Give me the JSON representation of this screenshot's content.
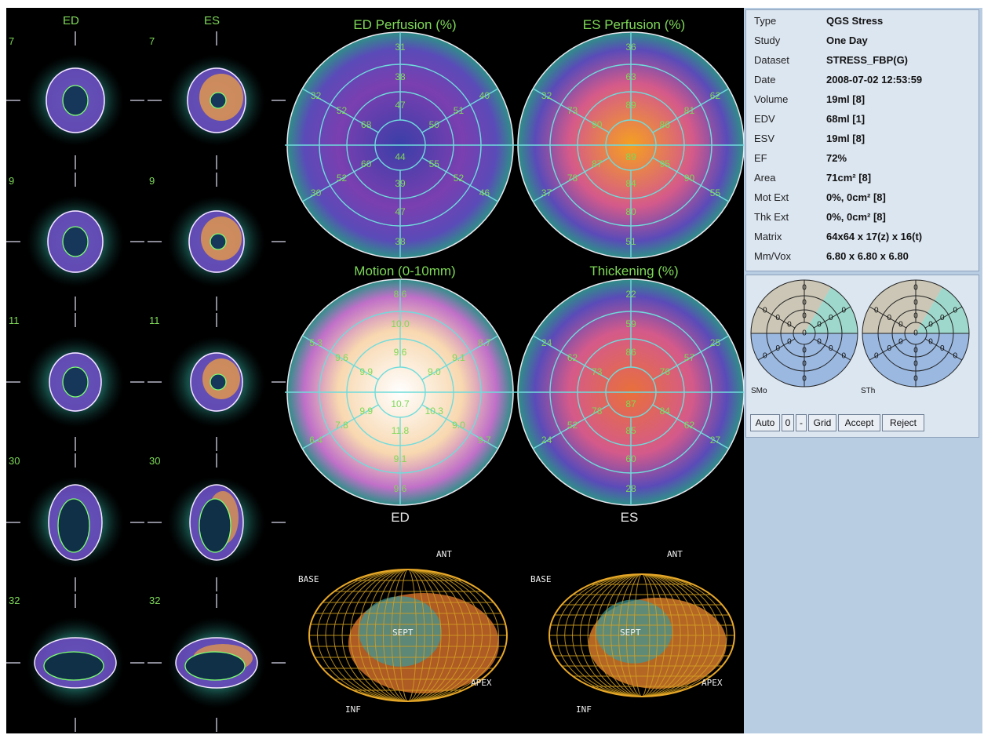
{
  "slices": {
    "headers": [
      "ED",
      "ES"
    ],
    "slice_numbers": [
      "7",
      "9",
      "11",
      "30",
      "32"
    ]
  },
  "polar_maps": [
    {
      "title": "ED Perfusion (%)",
      "color": "#3a3fa8",
      "values": {
        "apex": "44",
        "mid": [
          "47",
          "50",
          "55",
          "39",
          "60",
          "68"
        ],
        "inner": [
          "38",
          "51",
          "52",
          "47",
          "52",
          "52"
        ],
        "outer": [
          "31",
          "40",
          "46",
          "38",
          "30",
          "32"
        ]
      }
    },
    {
      "title": "ES Perfusion (%)",
      "color": "#f5a020",
      "values": {
        "apex": "89",
        "mid": [
          "89",
          "86",
          "95",
          "84",
          "87",
          "90"
        ],
        "inner": [
          "63",
          "81",
          "90",
          "80",
          "78",
          "73"
        ],
        "outer": [
          "36",
          "62",
          "55",
          "51",
          "37",
          "32"
        ]
      }
    },
    {
      "title": "Motion (0-10mm)",
      "color": "#f7e0c8",
      "values": {
        "apex": "10.7",
        "mid": [
          "9.6",
          "9.0",
          "10.3",
          "11.8",
          "9.9",
          "9.9"
        ],
        "inner": [
          "10.0",
          "9.1",
          "9.0",
          "9.1",
          "7.8",
          "9.6"
        ],
        "outer": [
          "8.6",
          "8.7",
          "9.7",
          "9.6",
          "6.4",
          "5.3"
        ]
      }
    },
    {
      "title": "Thickening (%)",
      "color": "#e8703a",
      "values": {
        "apex": "87",
        "mid": [
          "86",
          "76",
          "84",
          "85",
          "78",
          "73"
        ],
        "inner": [
          "59",
          "57",
          "62",
          "60",
          "52",
          "62"
        ],
        "outer": [
          "22",
          "25",
          "27",
          "28",
          "24",
          "24"
        ]
      }
    }
  ],
  "phase_labels": [
    "ED",
    "ES"
  ],
  "wireframe_labels": {
    "ant": "ANT",
    "base": "BASE",
    "sept": "SEPT",
    "apex": "APEX",
    "inf": "INF"
  },
  "info": [
    {
      "key": "Type",
      "value": "QGS Stress"
    },
    {
      "key": "Study",
      "value": "One Day"
    },
    {
      "key": "Dataset",
      "value": "STRESS_FBP(G)"
    },
    {
      "key": "Date",
      "value": "2008-07-02 12:53:59"
    },
    {
      "key": "Volume",
      "value": "19ml [8]"
    },
    {
      "key": "EDV",
      "value": "68ml [1]"
    },
    {
      "key": "ESV",
      "value": "19ml [8]"
    },
    {
      "key": "EF",
      "value": "72%"
    },
    {
      "key": "Area",
      "value": "71cm² [8]"
    },
    {
      "key": "Mot Ext",
      "value": "0%, 0cm² [8]"
    },
    {
      "key": "Thk Ext",
      "value": "0%, 0cm² [8]"
    },
    {
      "key": "Matrix",
      "value": "64x64 x 17(z) x 16(t)"
    },
    {
      "key": "Mm/Vox",
      "value": "6.80 x 6.80 x 6.80"
    }
  ],
  "bullseyes": [
    {
      "label": "SMo",
      "segment_value": "0"
    },
    {
      "label": "STh",
      "segment_value": "0"
    }
  ],
  "buttons": [
    "Auto",
    "0",
    "-",
    "Grid",
    "Accept",
    "Reject"
  ]
}
